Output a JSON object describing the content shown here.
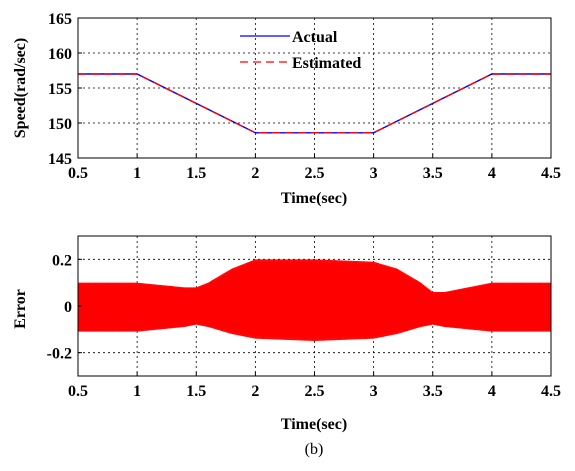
{
  "caption": "(b)",
  "chart_data": [
    {
      "type": "line",
      "xlabel": "Time(sec)",
      "ylabel": "Speed(rad/sec)",
      "xlim": [
        0.5,
        4.5
      ],
      "ylim": [
        145,
        165
      ],
      "xticks": [
        "0.5",
        "1",
        "1.5",
        "2",
        "2.5",
        "3",
        "3.5",
        "4",
        "4.5"
      ],
      "yticks": [
        "145",
        "150",
        "155",
        "160",
        "165"
      ],
      "grid": true,
      "legend_position": "top-center",
      "series": [
        {
          "name": "Actual",
          "color": "#0000ff",
          "style": "solid",
          "x": [
            0.5,
            1.0,
            2.0,
            3.0,
            4.0,
            4.5
          ],
          "y": [
            157,
            157,
            148.6,
            148.6,
            157,
            157
          ]
        },
        {
          "name": "Estimated",
          "color": "#ff0000",
          "style": "dashed",
          "x": [
            0.5,
            1.0,
            2.0,
            3.0,
            4.0,
            4.5
          ],
          "y": [
            157,
            157,
            148.6,
            148.6,
            157,
            157
          ]
        }
      ]
    },
    {
      "type": "line",
      "xlabel": "Time(sec)",
      "ylabel": "Error",
      "xlim": [
        0.5,
        4.5
      ],
      "ylim": [
        -0.3,
        0.3
      ],
      "xticks": [
        "0.5",
        "1",
        "1.5",
        "2",
        "2.5",
        "3",
        "3.5",
        "4",
        "4.5"
      ],
      "yticks": [
        "-0.2",
        "0",
        "0.2"
      ],
      "grid": true,
      "series": [
        {
          "color": "#ff0000",
          "style": "oscillating",
          "envelope_x": [
            0.5,
            1.0,
            1.4,
            1.5,
            1.6,
            1.8,
            2.0,
            2.5,
            3.0,
            3.2,
            3.4,
            3.5,
            3.6,
            4.0,
            4.5
          ],
          "envelope_upper": [
            0.1,
            0.1,
            0.08,
            0.08,
            0.1,
            0.16,
            0.2,
            0.2,
            0.19,
            0.16,
            0.1,
            0.06,
            0.06,
            0.1,
            0.1
          ],
          "envelope_lower": [
            -0.11,
            -0.11,
            -0.09,
            -0.08,
            -0.09,
            -0.12,
            -0.14,
            -0.15,
            -0.14,
            -0.12,
            -0.09,
            -0.08,
            -0.09,
            -0.11,
            -0.11
          ]
        }
      ]
    }
  ]
}
